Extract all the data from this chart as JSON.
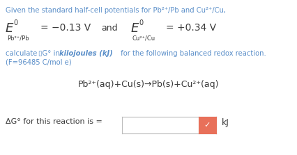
{
  "bg_color": "#ffffff",
  "blue_color": "#5b8fc9",
  "dark_color": "#3a3a3a",
  "line1": "Given the standard half-cell potentials for Pb²⁺/Pb and Cu²⁺/Cu,",
  "E_italic": "E",
  "sup0": "0",
  "sub1": "Pb²⁺/Pb",
  "val1": "= −0.13 V",
  "and_text": "and",
  "sub2": "Cu²⁺/Cu",
  "val2": "= +0.34 V",
  "calc_pre": "calculate ",
  "calc_square": "▯G° in ",
  "calc_italic": "kilojoules (kJ)",
  "calc_post": " for the following balanced redox reaction.",
  "line4": "(F=96485 C/mol e)",
  "equation": "Pb²⁺(aq)+Cu(s)→Pb(s)+Cu²⁺(aq)",
  "answer_label": "ΔG° for this reaction is = ",
  "answer_unit": "kJ",
  "box_red": "#e8705a",
  "figw": 4.27,
  "figh": 2.23,
  "dpi": 100
}
